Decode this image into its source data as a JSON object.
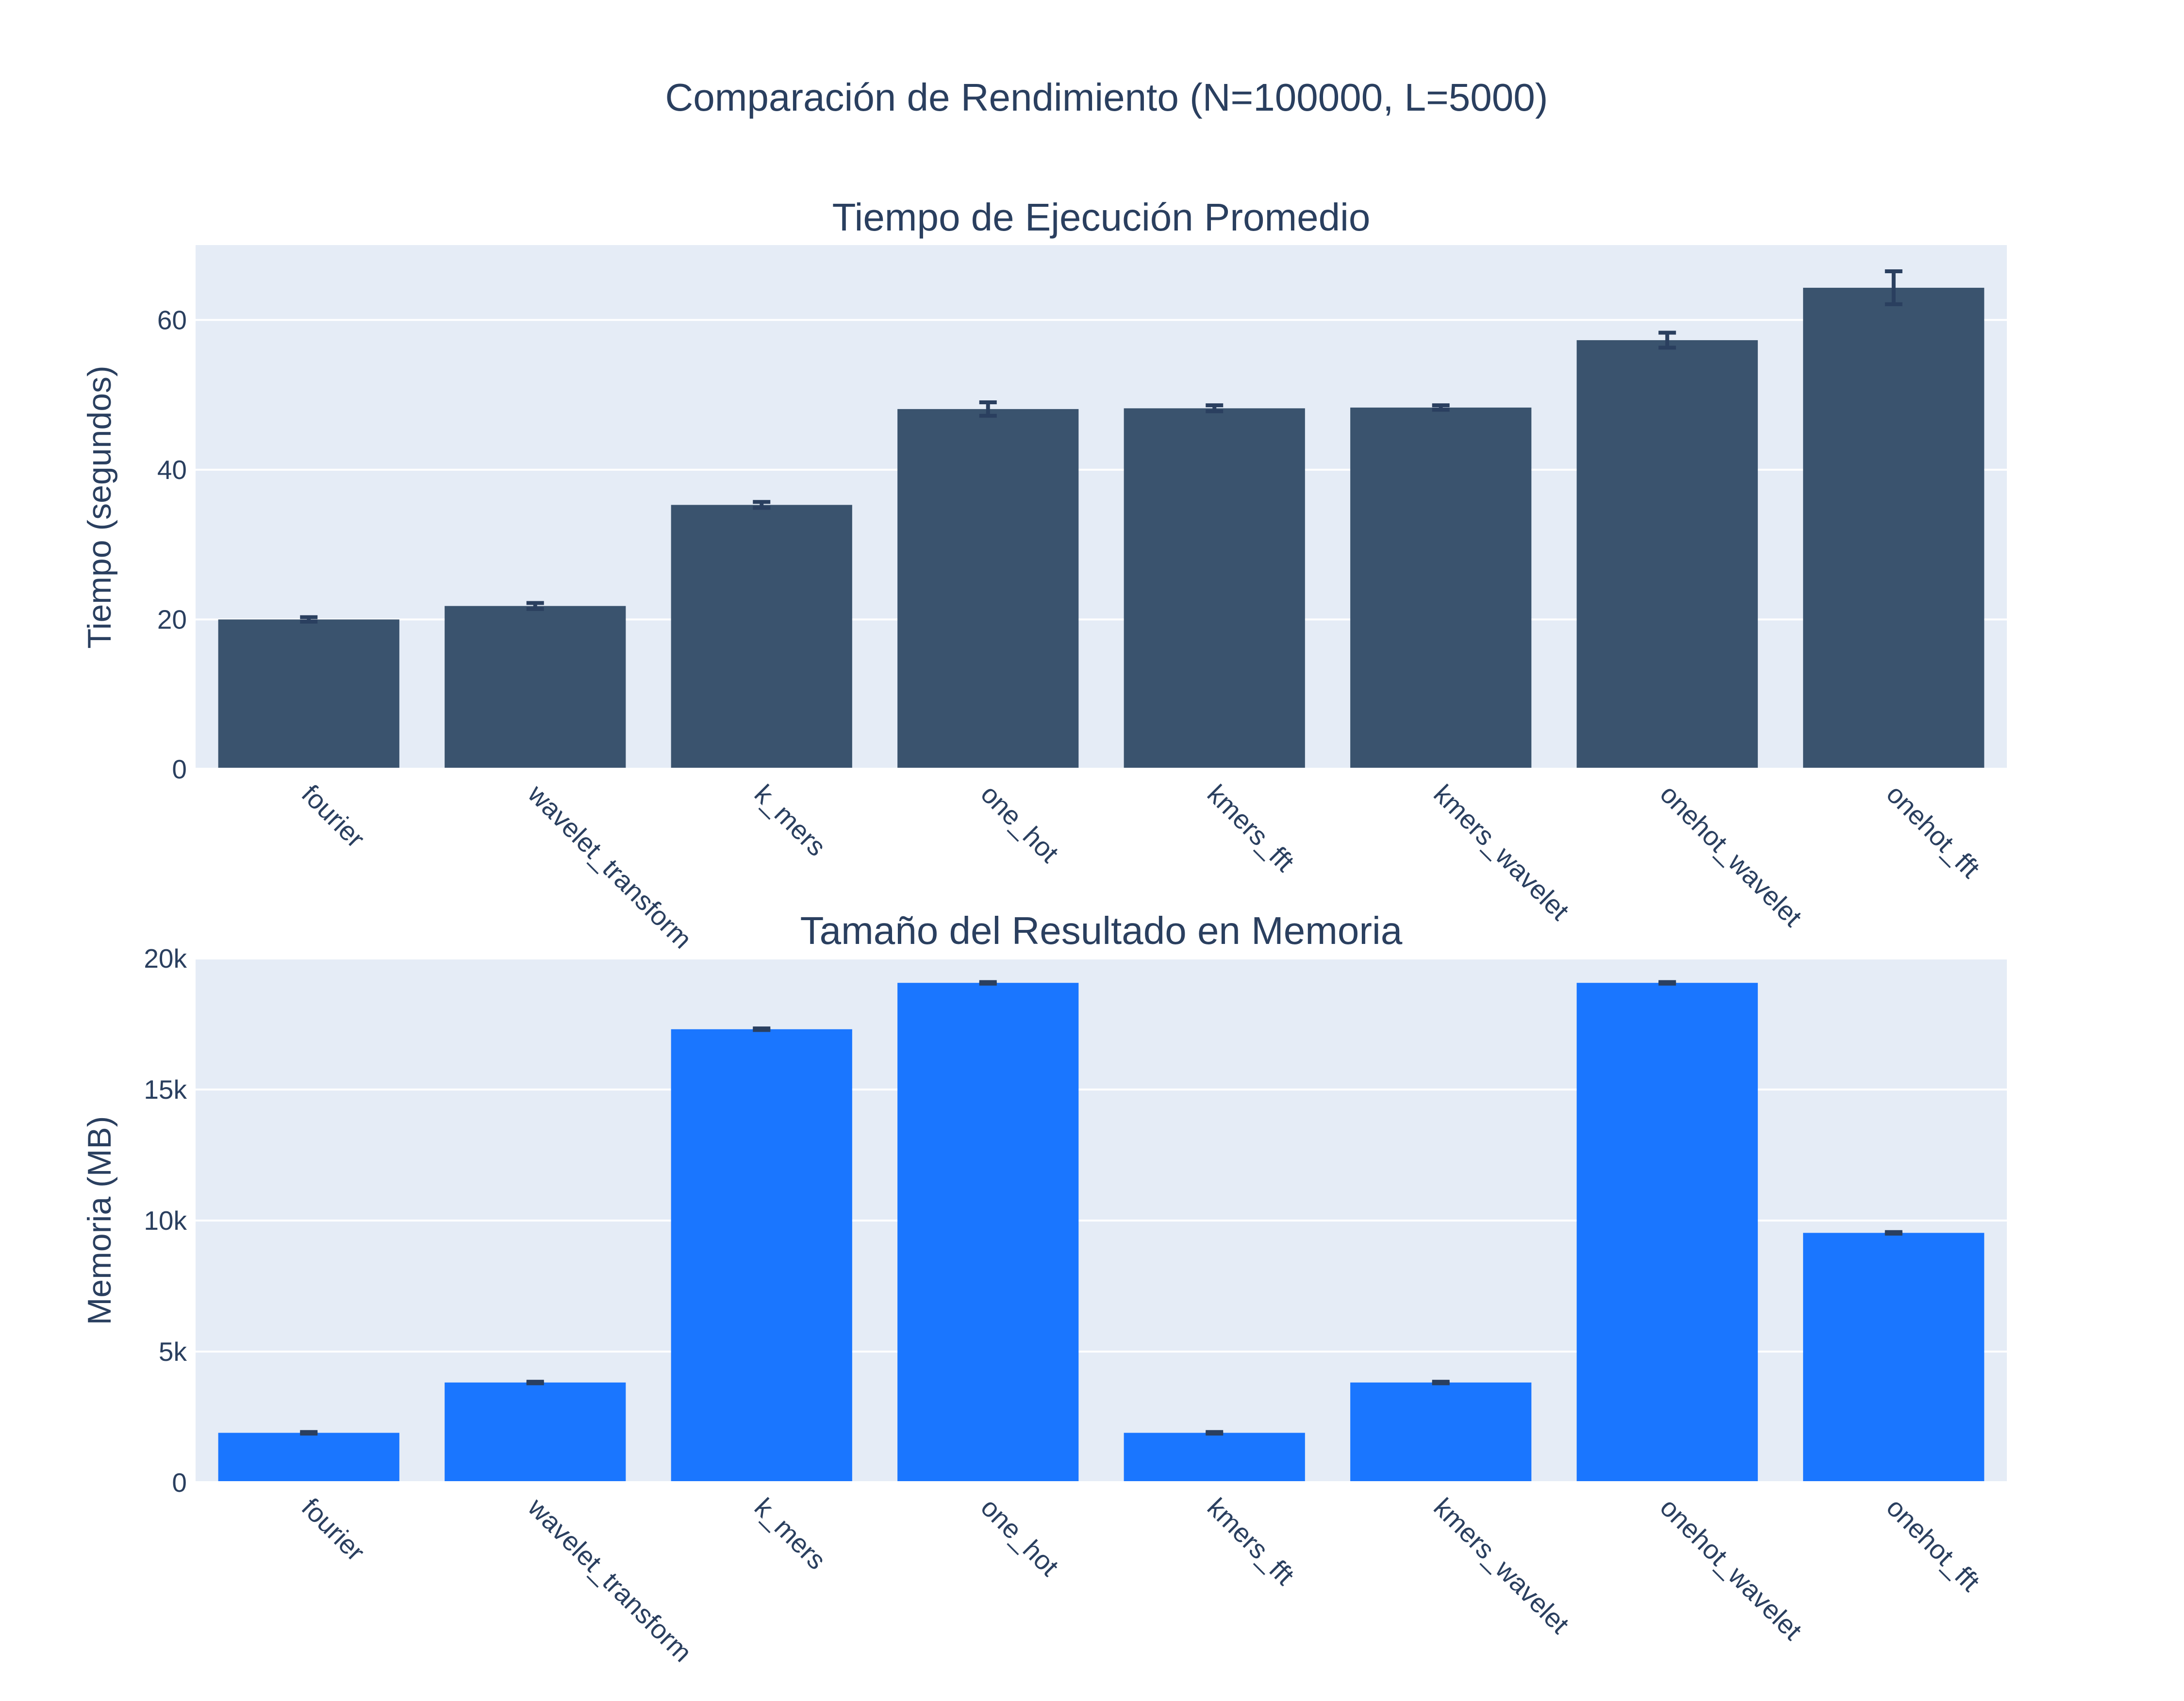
{
  "title": "Comparación de Rendimiento (N=100000, L=5000)",
  "colors": {
    "time_bar": "#3a536e",
    "memory_bar": "#1a76ff",
    "error_bar": "#2a3f5f",
    "plot_bg": "#e5ecf6",
    "text": "#2a3f5f"
  },
  "chart_data": [
    {
      "type": "bar",
      "title": "Tiempo de Ejecución Promedio",
      "ylabel": "Tiempo (segundos)",
      "xlabel": "",
      "categories": [
        "fourier",
        "wavelet_transform",
        "k_mers",
        "one_hot",
        "kmers_fft",
        "kmers_wavelet",
        "onehot_wavelet",
        "onehot_fft"
      ],
      "values": [
        20.0,
        21.8,
        35.3,
        48.1,
        48.2,
        48.3,
        57.3,
        64.3
      ],
      "errors": [
        0.3,
        0.4,
        0.4,
        0.9,
        0.4,
        0.3,
        1.0,
        2.2
      ],
      "ylim": [
        0,
        70
      ],
      "yticks": [
        0,
        20,
        40,
        60
      ],
      "ytick_labels": [
        "0",
        "20",
        "40",
        "60"
      ],
      "grid": true
    },
    {
      "type": "bar",
      "title": "Tamaño del Resultado en Memoria",
      "ylabel": "Memoria (MB)",
      "xlabel": "",
      "categories": [
        "fourier",
        "wavelet_transform",
        "k_mers",
        "one_hot",
        "kmers_fft",
        "kmers_wavelet",
        "onehot_wavelet",
        "onehot_fft"
      ],
      "values": [
        1900,
        3820,
        17300,
        19070,
        1900,
        3820,
        19070,
        9530
      ],
      "errors": [
        30,
        30,
        30,
        30,
        30,
        30,
        30,
        30
      ],
      "ylim": [
        0,
        20000
      ],
      "yticks": [
        0,
        5000,
        10000,
        15000,
        20000
      ],
      "ytick_labels": [
        "0",
        "5k",
        "10k",
        "15k",
        "20k"
      ],
      "grid": true
    }
  ]
}
